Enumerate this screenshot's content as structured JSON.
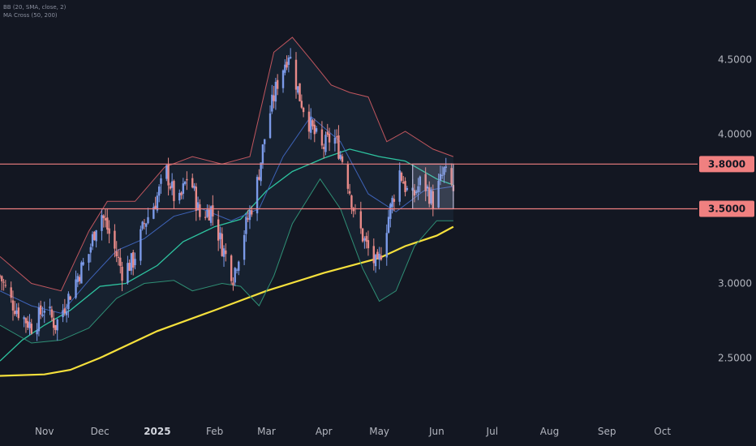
{
  "legend": {
    "bb": "BB (20, SMA, close, 2)",
    "ma": "MA Cross (50, 200)"
  },
  "colors": {
    "background": "#131722",
    "up": "#7b9ae8",
    "down": "#e88a88",
    "bb_band": "#c0565e",
    "bb_basis": "#3e63b8",
    "bb_lower": "#2f8f75",
    "bb_fill": "#1c2a3a",
    "ma50": "#2ec4a0",
    "ma200": "#f5e03c",
    "level_line": "#f08080",
    "box": "#b8b8d6"
  },
  "chart_data": {
    "type": "line",
    "title": "",
    "y_ticks": [
      "4.5000",
      "4.0000",
      "3.0000",
      "2.5000"
    ],
    "x_ticks": [
      "Nov",
      "Dec",
      "2025",
      "Feb",
      "Mar",
      "Apr",
      "May",
      "Jun",
      "Jul",
      "Aug",
      "Sep",
      "Oct"
    ],
    "ylim": [
      2.1,
      4.9
    ],
    "xlim": [
      "2024-10-08",
      "2025-10-20"
    ],
    "price_levels": [
      {
        "label": "3.8000",
        "value": 3.8
      },
      {
        "label": "3.5000",
        "value": 3.5
      }
    ],
    "range_box": {
      "x": [
        "2025-05-19",
        "2025-06-10"
      ],
      "y": [
        3.5,
        3.8
      ]
    },
    "price_points": [
      [
        "2024-10-08",
        3.05
      ],
      [
        "2024-10-14",
        2.88
      ],
      [
        "2024-10-20",
        2.78
      ],
      [
        "2024-10-26",
        2.7
      ],
      [
        "2024-11-01",
        2.85
      ],
      [
        "2024-11-07",
        2.72
      ],
      [
        "2024-11-13",
        2.88
      ],
      [
        "2024-11-19",
        3.05
      ],
      [
        "2024-11-25",
        3.2
      ],
      [
        "2024-12-01",
        3.5
      ],
      [
        "2024-12-07",
        3.3
      ],
      [
        "2024-12-13",
        3.08
      ],
      [
        "2024-12-19",
        3.15
      ],
      [
        "2024-12-25",
        3.4
      ],
      [
        "2024-12-31",
        3.55
      ],
      [
        "2025-01-06",
        3.75
      ],
      [
        "2025-01-12",
        3.5
      ],
      [
        "2025-01-18",
        3.75
      ],
      [
        "2025-01-24",
        3.45
      ],
      [
        "2025-01-30",
        3.5
      ],
      [
        "2025-02-05",
        3.25
      ],
      [
        "2025-02-11",
        3.05
      ],
      [
        "2025-02-17",
        3.35
      ],
      [
        "2025-02-23",
        3.6
      ],
      [
        "2025-03-01",
        4.05
      ],
      [
        "2025-03-07",
        4.35
      ],
      [
        "2025-03-13",
        4.55
      ],
      [
        "2025-03-19",
        4.25
      ],
      [
        "2025-03-25",
        4.05
      ],
      [
        "2025-03-31",
        3.9
      ],
      [
        "2025-04-06",
        4.0
      ],
      [
        "2025-04-12",
        3.8
      ],
      [
        "2025-04-18",
        3.45
      ],
      [
        "2025-04-24",
        3.25
      ],
      [
        "2025-04-30",
        3.1
      ],
      [
        "2025-05-06",
        3.45
      ],
      [
        "2025-05-12",
        3.75
      ],
      [
        "2025-05-18",
        3.55
      ],
      [
        "2025-05-24",
        3.7
      ],
      [
        "2025-05-30",
        3.55
      ],
      [
        "2025-06-05",
        3.75
      ],
      [
        "2025-06-10",
        3.62
      ]
    ],
    "series": [
      {
        "name": "MA 50",
        "points": [
          [
            "2024-10-08",
            2.48
          ],
          [
            "2024-10-20",
            2.62
          ],
          [
            "2024-11-01",
            2.72
          ],
          [
            "2024-11-15",
            2.82
          ],
          [
            "2024-12-01",
            2.98
          ],
          [
            "2024-12-15",
            3.0
          ],
          [
            "2025-01-01",
            3.12
          ],
          [
            "2025-01-15",
            3.28
          ],
          [
            "2025-02-01",
            3.38
          ],
          [
            "2025-02-15",
            3.43
          ],
          [
            "2025-03-01",
            3.62
          ],
          [
            "2025-03-15",
            3.75
          ],
          [
            "2025-04-01",
            3.84
          ],
          [
            "2025-04-15",
            3.9
          ],
          [
            "2025-05-01",
            3.85
          ],
          [
            "2025-05-15",
            3.82
          ],
          [
            "2025-06-01",
            3.7
          ],
          [
            "2025-06-10",
            3.66
          ]
        ]
      },
      {
        "name": "MA 200",
        "points": [
          [
            "2024-10-08",
            2.38
          ],
          [
            "2024-11-01",
            2.39
          ],
          [
            "2024-11-15",
            2.42
          ],
          [
            "2024-12-01",
            2.5
          ],
          [
            "2025-01-01",
            2.68
          ],
          [
            "2025-02-01",
            2.82
          ],
          [
            "2025-03-01",
            2.95
          ],
          [
            "2025-04-01",
            3.07
          ],
          [
            "2025-05-01",
            3.17
          ],
          [
            "2025-05-15",
            3.25
          ],
          [
            "2025-06-01",
            3.32
          ],
          [
            "2025-06-10",
            3.38
          ]
        ]
      },
      {
        "name": "BB Upper",
        "points": [
          [
            "2024-10-08",
            3.18
          ],
          [
            "2024-10-25",
            3.0
          ],
          [
            "2024-11-10",
            2.95
          ],
          [
            "2024-11-25",
            3.35
          ],
          [
            "2024-12-05",
            3.55
          ],
          [
            "2024-12-20",
            3.55
          ],
          [
            "2025-01-05",
            3.78
          ],
          [
            "2025-01-20",
            3.85
          ],
          [
            "2025-02-05",
            3.8
          ],
          [
            "2025-02-20",
            3.85
          ],
          [
            "2025-03-05",
            4.55
          ],
          [
            "2025-03-15",
            4.65
          ],
          [
            "2025-03-25",
            4.5
          ],
          [
            "2025-04-05",
            4.33
          ],
          [
            "2025-04-15",
            4.28
          ],
          [
            "2025-04-25",
            4.25
          ],
          [
            "2025-05-05",
            3.95
          ],
          [
            "2025-05-15",
            4.02
          ],
          [
            "2025-05-30",
            3.9
          ],
          [
            "2025-06-10",
            3.85
          ]
        ]
      },
      {
        "name": "BB Basis",
        "points": [
          [
            "2024-10-08",
            2.95
          ],
          [
            "2024-10-25",
            2.85
          ],
          [
            "2024-11-10",
            2.8
          ],
          [
            "2024-11-25",
            3.02
          ],
          [
            "2024-12-10",
            3.22
          ],
          [
            "2024-12-25",
            3.3
          ],
          [
            "2025-01-10",
            3.45
          ],
          [
            "2025-01-25",
            3.5
          ],
          [
            "2025-02-10",
            3.42
          ],
          [
            "2025-02-25",
            3.5
          ],
          [
            "2025-03-10",
            3.85
          ],
          [
            "2025-03-25",
            4.12
          ],
          [
            "2025-04-10",
            3.95
          ],
          [
            "2025-04-25",
            3.6
          ],
          [
            "2025-05-10",
            3.48
          ],
          [
            "2025-05-25",
            3.62
          ],
          [
            "2025-06-10",
            3.65
          ]
        ]
      },
      {
        "name": "BB Lower",
        "points": [
          [
            "2024-10-08",
            2.72
          ],
          [
            "2024-10-25",
            2.6
          ],
          [
            "2024-11-10",
            2.62
          ],
          [
            "2024-11-25",
            2.7
          ],
          [
            "2024-12-10",
            2.9
          ],
          [
            "2024-12-25",
            3.0
          ],
          [
            "2025-01-10",
            3.02
          ],
          [
            "2025-01-20",
            2.95
          ],
          [
            "2025-02-05",
            3.0
          ],
          [
            "2025-02-15",
            2.98
          ],
          [
            "2025-02-25",
            2.85
          ],
          [
            "2025-03-05",
            3.05
          ],
          [
            "2025-03-15",
            3.4
          ],
          [
            "2025-03-30",
            3.7
          ],
          [
            "2025-04-10",
            3.5
          ],
          [
            "2025-04-22",
            3.1
          ],
          [
            "2025-05-01",
            2.88
          ],
          [
            "2025-05-10",
            2.95
          ],
          [
            "2025-05-20",
            3.25
          ],
          [
            "2025-06-01",
            3.42
          ],
          [
            "2025-06-10",
            3.42
          ]
        ]
      }
    ]
  }
}
